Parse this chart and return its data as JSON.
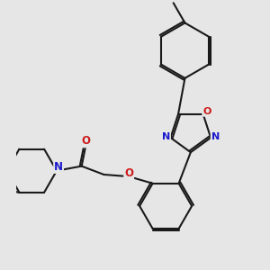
{
  "bg_color": "#e6e6e6",
  "bond_color": "#1a1a1a",
  "bond_width": 1.6,
  "atom_colors": {
    "N": "#1a1acc",
    "O": "#cc1a1a"
  },
  "fig_size": [
    3.0,
    3.0
  ],
  "dpi": 100
}
